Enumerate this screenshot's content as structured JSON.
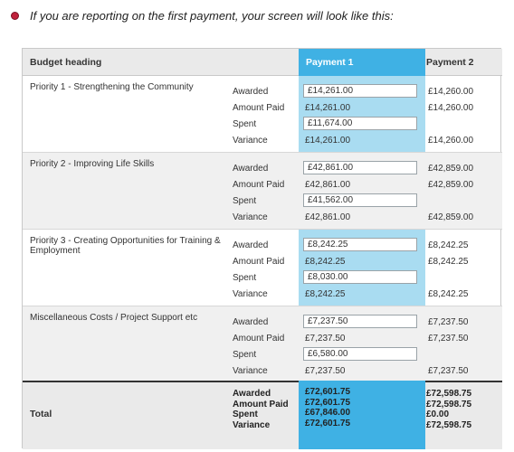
{
  "intro": {
    "text": "If you are reporting on the first payment, your screen will look like this:"
  },
  "colors": {
    "accent": "#3fb1e4",
    "payment_col": "#a9dcf1",
    "bullet": "#c0213b"
  },
  "header": {
    "budget_heading": "Budget heading",
    "payment1": "Payment 1",
    "payment2": "Payment 2"
  },
  "row_labels": {
    "awarded": "Awarded",
    "amount_paid": "Amount Paid",
    "spent": "Spent",
    "variance": "Variance"
  },
  "groups": [
    {
      "title": "Priority 1 - Strengthening the Community",
      "p1": {
        "awarded": "£14,261.00",
        "amount_paid": "£14,261.00",
        "spent": "£11,674.00",
        "variance": "£14,261.00"
      },
      "p2": {
        "awarded": "£14,260.00",
        "amount_paid": "£14,260.00",
        "variance": "£14,260.00"
      }
    },
    {
      "title": "Priority 2 - Improving Life Skills",
      "p1": {
        "awarded": "£42,861.00",
        "amount_paid": "£42,861.00",
        "spent": "£41,562.00",
        "variance": "£42,861.00"
      },
      "p2": {
        "awarded": "£42,859.00",
        "amount_paid": "£42,859.00",
        "variance": "£42,859.00"
      }
    },
    {
      "title": "Priority 3 - Creating Opportunities for Training & Employment",
      "p1": {
        "awarded": "£8,242.25",
        "amount_paid": "£8,242.25",
        "spent": "£8,030.00",
        "variance": "£8,242.25"
      },
      "p2": {
        "awarded": "£8,242.25",
        "amount_paid": "£8,242.25",
        "variance": "£8,242.25"
      }
    },
    {
      "title": "Miscellaneous Costs / Project Support etc",
      "p1": {
        "awarded": "£7,237.50",
        "amount_paid": "£7,237.50",
        "spent": "£6,580.00",
        "variance": "£7,237.50"
      },
      "p2": {
        "awarded": "£7,237.50",
        "amount_paid": "£7,237.50",
        "variance": "£7,237.50"
      }
    }
  ],
  "total": {
    "label": "Total",
    "p1": {
      "awarded": "£72,601.75",
      "amount_paid": "£72,601.75",
      "spent": "£67,846.00",
      "variance": "£72,601.75"
    },
    "p2": {
      "awarded": "£72,598.75",
      "amount_paid": "£72,598.75",
      "spent": "£0.00",
      "variance": "£72,598.75"
    }
  }
}
